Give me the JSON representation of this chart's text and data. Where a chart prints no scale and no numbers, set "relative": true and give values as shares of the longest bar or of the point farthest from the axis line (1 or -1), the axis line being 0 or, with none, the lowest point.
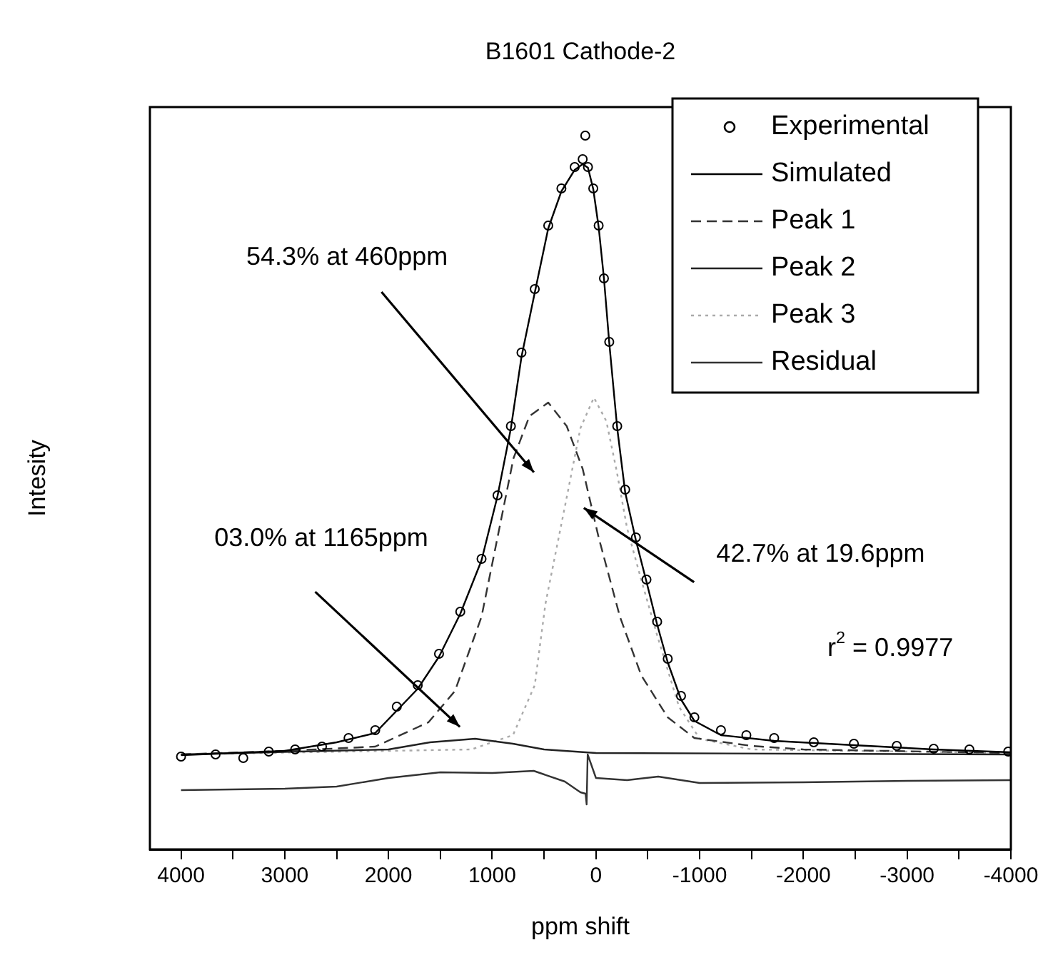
{
  "chart_data": {
    "type": "line",
    "title": "B1601 Cathode-2",
    "xlabel": "ppm shift",
    "ylabel": "Intesity",
    "relative": true,
    "legend": "top right",
    "xlim": [
      4300,
      -4000
    ],
    "xticks": [
      4000,
      {
        "value": 3500,
        "label": null
      },
      3000,
      {
        "value": 2500,
        "label": null
      },
      2000,
      {
        "value": 1500,
        "label": null
      },
      1000,
      {
        "value": 500,
        "label": null
      },
      0,
      {
        "value": -500,
        "label": null
      },
      -1000,
      {
        "value": -1500,
        "label": null
      },
      -2000,
      {
        "value": -2500,
        "label": null
      },
      -3000,
      {
        "value": -3500,
        "label": null
      },
      -4000
    ],
    "annotations": [
      "54.3% at 460ppm",
      "03.0% at 1165ppm",
      "42.7% at 19.6ppm",
      "r$^{2}$ = 0.9977"
    ],
    "series": [
      {
        "name": "Experimental",
        "type": "scatter",
        "marker": "circle",
        "color": "#000000",
        "x": [
          4000,
          3667,
          3400,
          3154,
          2900,
          2641,
          2385,
          2128,
          1920,
          1718,
          1513,
          1308,
          1103,
          949,
          820,
          718,
          590,
          460,
          333,
          205,
          128,
          103,
          77,
          26,
          -26,
          -77,
          -128,
          -205,
          -282,
          -385,
          -487,
          -590,
          -692,
          -820,
          -949,
          -1205,
          -1450,
          -1718,
          -2100,
          -2487,
          -2900,
          -3256,
          -3600,
          -3974
        ],
        "values": [
          0.13,
          0.133,
          0.128,
          0.137,
          0.14,
          0.144,
          0.156,
          0.167,
          0.2,
          0.23,
          0.274,
          0.333,
          0.407,
          0.496,
          0.593,
          0.696,
          0.785,
          0.874,
          0.926,
          0.956,
          0.967,
          1.0,
          0.956,
          0.926,
          0.874,
          0.8,
          0.711,
          0.593,
          0.504,
          0.437,
          0.378,
          0.319,
          0.267,
          0.215,
          0.185,
          0.167,
          0.16,
          0.156,
          0.15,
          0.148,
          0.145,
          0.141,
          0.14,
          0.137
        ]
      },
      {
        "name": "Simulated",
        "marker": "none",
        "line_style": "solid",
        "color": "#000000",
        "x": [
          4000,
          3000,
          2500,
          2128,
          1718,
          1513,
          1308,
          1103,
          949,
          820,
          718,
          590,
          460,
          333,
          205,
          128,
          77,
          26,
          -26,
          -77,
          -128,
          -205,
          -282,
          -385,
          -487,
          -590,
          -692,
          -820,
          -949,
          -1205,
          -1718,
          -2487,
          -3256,
          -4000
        ],
        "values": [
          0.132,
          0.138,
          0.15,
          0.163,
          0.225,
          0.27,
          0.33,
          0.405,
          0.495,
          0.59,
          0.69,
          0.78,
          0.87,
          0.922,
          0.952,
          0.96,
          0.955,
          0.925,
          0.872,
          0.8,
          0.71,
          0.59,
          0.5,
          0.433,
          0.375,
          0.315,
          0.262,
          0.21,
          0.18,
          0.16,
          0.152,
          0.146,
          0.14,
          0.136
        ]
      },
      {
        "name": "Peak 1",
        "marker": "none",
        "line_style": "dashed",
        "color": "#333333",
        "x": [
          4000,
          3000,
          2128,
          1615,
          1359,
          1103,
          795,
          641,
          460,
          282,
          128,
          -26,
          -231,
          -436,
          -692,
          -949,
          -1500,
          -2000,
          -4000
        ],
        "values": [
          0.133,
          0.138,
          0.144,
          0.178,
          0.222,
          0.326,
          0.548,
          0.607,
          0.626,
          0.593,
          0.533,
          0.437,
          0.326,
          0.244,
          0.185,
          0.156,
          0.145,
          0.14,
          0.135
        ]
      },
      {
        "name": "Peak 2",
        "marker": "none",
        "line_style": "solid",
        "color": "#222222",
        "x": [
          4000,
          2000,
          1600,
          1165,
          800,
          500,
          0,
          -4000
        ],
        "values": [
          0.133,
          0.14,
          0.15,
          0.155,
          0.148,
          0.14,
          0.135,
          0.133
        ]
      },
      {
        "name": "Peak 3",
        "marker": "none",
        "line_style": "dotted",
        "color": "#aaaaaa",
        "x": [
          4000,
          1200,
          800,
          590,
          487,
          300,
          150,
          20,
          -100,
          -200,
          -300,
          -436,
          -590,
          -800,
          -1000,
          -1500,
          -4000
        ],
        "values": [
          0.133,
          0.14,
          0.16,
          0.23,
          0.344,
          0.48,
          0.59,
          0.633,
          0.6,
          0.53,
          0.45,
          0.378,
          0.3,
          0.2,
          0.155,
          0.14,
          0.135
        ]
      },
      {
        "name": "Residual",
        "marker": "none",
        "line_style": "solid",
        "color": "#333333",
        "x": [
          4000,
          3000,
          2500,
          2000,
          1500,
          1000,
          600,
          300,
          150,
          100,
          90,
          80,
          0,
          -300,
          -600,
          -1000,
          -2000,
          -3000,
          -4000
        ],
        "values": [
          0.083,
          0.085,
          0.088,
          0.1,
          0.108,
          0.107,
          0.11,
          0.095,
          0.08,
          0.078,
          0.063,
          0.133,
          0.1,
          0.097,
          0.102,
          0.093,
          0.094,
          0.096,
          0.097
        ]
      }
    ]
  }
}
